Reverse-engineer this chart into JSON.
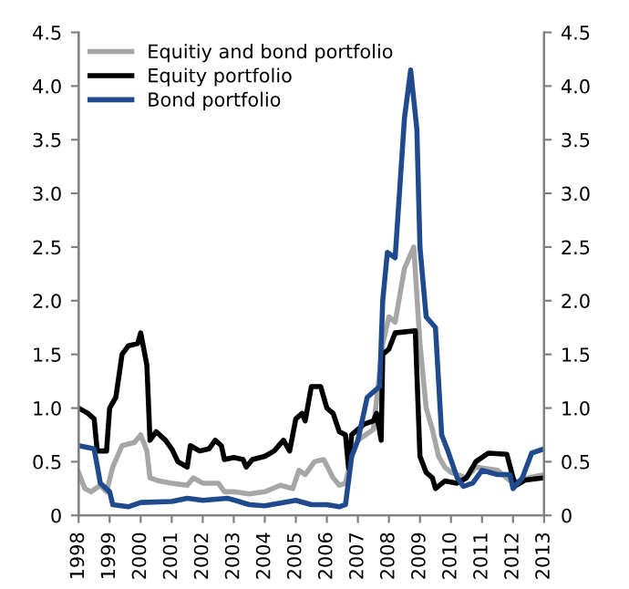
{
  "chart_data": {
    "type": "line",
    "series": [
      {
        "name": "Equitiy and bond portfolio",
        "color": "#a6a6a6",
        "x": [
          1998.0,
          1998.2,
          1998.4,
          1998.7,
          1998.9,
          1999.1,
          1999.4,
          1999.8,
          2000.0,
          2000.2,
          2000.3,
          2000.6,
          2001.0,
          2001.5,
          2001.7,
          2002.0,
          2002.5,
          2002.7,
          2003.0,
          2003.5,
          2004.0,
          2004.5,
          2004.9,
          2005.1,
          2005.3,
          2005.6,
          2005.9,
          2006.2,
          2006.4,
          2006.6,
          2006.8,
          2007.0,
          2007.5,
          2007.8,
          2008.0,
          2008.2,
          2008.5,
          2008.8,
          2009.0,
          2009.2,
          2009.4,
          2009.6,
          2009.8,
          2010.0,
          2010.5,
          2010.8,
          2011.5,
          2012.0,
          2012.5,
          2013.0
        ],
        "values": [
          0.4,
          0.25,
          0.22,
          0.28,
          0.22,
          0.45,
          0.65,
          0.68,
          0.75,
          0.6,
          0.35,
          0.32,
          0.3,
          0.28,
          0.35,
          0.3,
          0.3,
          0.22,
          0.22,
          0.2,
          0.22,
          0.28,
          0.25,
          0.42,
          0.38,
          0.5,
          0.52,
          0.35,
          0.28,
          0.3,
          0.55,
          0.7,
          0.8,
          1.6,
          1.85,
          1.8,
          2.3,
          2.5,
          1.6,
          1.0,
          0.8,
          0.55,
          0.45,
          0.4,
          0.35,
          0.45,
          0.42,
          0.3,
          0.35,
          0.38
        ]
      },
      {
        "name": "Equity portfolio",
        "color": "#000000",
        "x": [
          1998.0,
          1998.3,
          1998.5,
          1998.6,
          1998.9,
          1999.0,
          1999.2,
          1999.4,
          1999.6,
          1999.9,
          2000.0,
          2000.1,
          2000.2,
          2000.3,
          2000.5,
          2000.8,
          2001.0,
          2001.2,
          2001.5,
          2001.6,
          2001.9,
          2002.2,
          2002.4,
          2002.6,
          2002.7,
          2003.0,
          2003.3,
          2003.4,
          2003.6,
          2004.0,
          2004.3,
          2004.6,
          2004.8,
          2005.0,
          2005.2,
          2005.3,
          2005.5,
          2005.8,
          2006.0,
          2006.2,
          2006.4,
          2006.6,
          2006.7,
          2006.8,
          2007.2,
          2007.5,
          2007.6,
          2007.75,
          2007.8,
          2008.0,
          2008.2,
          2008.85,
          2009.0,
          2009.2,
          2009.4,
          2009.5,
          2009.8,
          2010.2,
          2010.5,
          2010.8,
          2011.2,
          2011.8,
          2012.0,
          2012.1,
          2012.4,
          2013.0
        ],
        "values": [
          1.0,
          0.95,
          0.9,
          0.6,
          0.6,
          1.0,
          1.1,
          1.5,
          1.58,
          1.6,
          1.7,
          1.55,
          1.4,
          0.7,
          0.78,
          0.7,
          0.62,
          0.5,
          0.45,
          0.65,
          0.6,
          0.62,
          0.7,
          0.65,
          0.52,
          0.54,
          0.52,
          0.45,
          0.52,
          0.55,
          0.6,
          0.7,
          0.6,
          0.9,
          0.95,
          0.88,
          1.2,
          1.2,
          1.0,
          0.95,
          0.78,
          0.75,
          0.44,
          0.75,
          0.85,
          0.88,
          0.95,
          0.7,
          1.5,
          1.55,
          1.7,
          1.72,
          0.55,
          0.4,
          0.35,
          0.25,
          0.32,
          0.3,
          0.35,
          0.5,
          0.58,
          0.57,
          0.35,
          0.28,
          0.33,
          0.35
        ]
      },
      {
        "name": "Bond portfolio",
        "color": "#1f4b8e",
        "x": [
          1998.0,
          1998.5,
          1998.7,
          1999.0,
          1999.1,
          1999.6,
          2000.0,
          2001.0,
          2001.5,
          2002.0,
          2002.8,
          2003.5,
          2004.0,
          2005.0,
          2005.5,
          2006.0,
          2006.4,
          2006.6,
          2006.8,
          2007.0,
          2007.3,
          2007.5,
          2007.7,
          2007.8,
          2007.95,
          2008.2,
          2008.5,
          2008.7,
          2008.9,
          2009.0,
          2009.2,
          2009.5,
          2009.7,
          2009.9,
          2010.2,
          2010.4,
          2010.7,
          2011.0,
          2011.5,
          2011.9,
          2012.0,
          2012.3,
          2012.6,
          2013.0
        ],
        "values": [
          0.65,
          0.62,
          0.3,
          0.22,
          0.1,
          0.08,
          0.12,
          0.13,
          0.16,
          0.14,
          0.16,
          0.1,
          0.09,
          0.14,
          0.1,
          0.1,
          0.08,
          0.1,
          0.55,
          0.7,
          1.1,
          1.15,
          1.2,
          2.0,
          2.45,
          2.4,
          3.7,
          4.15,
          3.6,
          2.5,
          1.85,
          1.75,
          0.75,
          0.6,
          0.35,
          0.27,
          0.3,
          0.42,
          0.38,
          0.38,
          0.25,
          0.35,
          0.58,
          0.62
        ]
      }
    ],
    "xlim": [
      1998,
      2013
    ],
    "xticks": [
      1998,
      1999,
      2000,
      2001,
      2002,
      2003,
      2004,
      2005,
      2006,
      2007,
      2008,
      2009,
      2010,
      2011,
      2012,
      2013
    ],
    "ylim": [
      0,
      4.5
    ],
    "yticks": [
      0,
      {
        "value": 0.5,
        "label": "0.5"
      },
      {
        "value": 1.0,
        "label": "1.0"
      },
      {
        "value": 1.5,
        "label": "1.5"
      },
      {
        "value": 2.0,
        "label": "2.0"
      },
      {
        "value": 2.5,
        "label": "2.5"
      },
      {
        "value": 3.0,
        "label": "3.0"
      },
      {
        "value": 3.5,
        "label": "3.5"
      },
      {
        "value": 4.0,
        "label": "4.0"
      },
      {
        "value": 4.5,
        "label": "4.5"
      }
    ],
    "y2lim": [
      0,
      4.5
    ],
    "y2ticks": [
      0,
      {
        "value": 0.5,
        "label": "0.5"
      },
      {
        "value": 1.0,
        "label": "1.0"
      },
      {
        "value": 1.5,
        "label": "1.5"
      },
      {
        "value": 2.0,
        "label": "2.0"
      },
      {
        "value": 2.5,
        "label": "2.5"
      },
      {
        "value": 3.0,
        "label": "3.0"
      },
      {
        "value": 3.5,
        "label": "3.5"
      },
      {
        "value": 4.0,
        "label": "4.0"
      },
      {
        "value": 4.5,
        "label": "4.5"
      }
    ],
    "legend": "top left",
    "grid": false
  }
}
